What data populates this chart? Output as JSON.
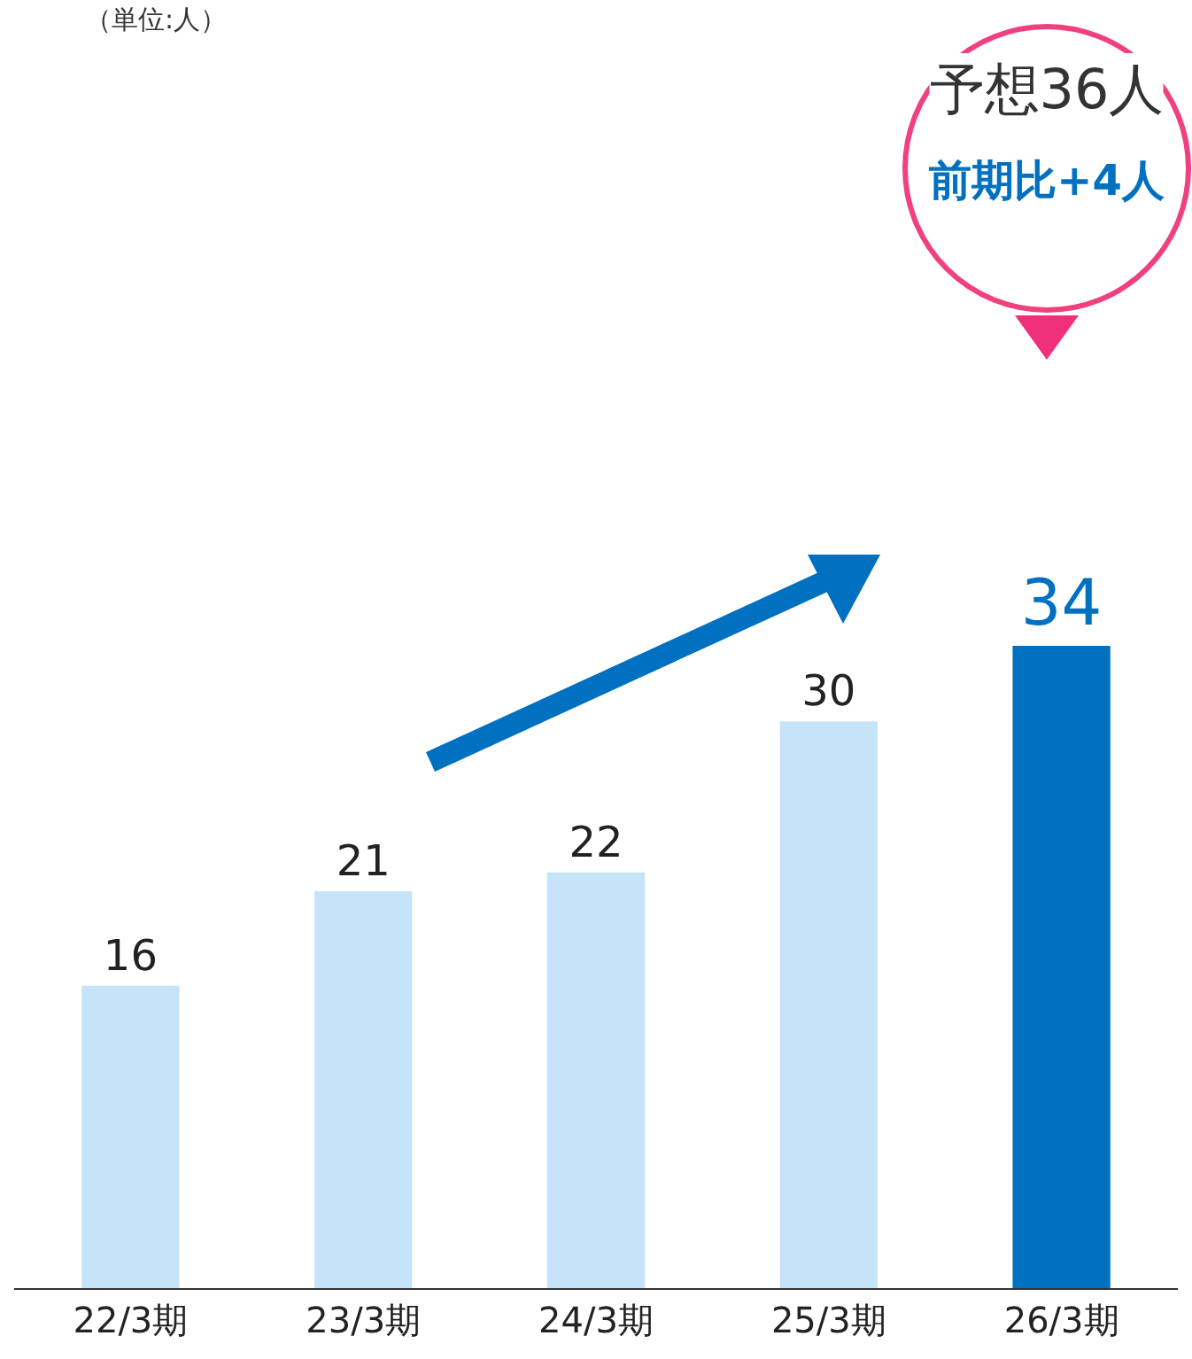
{
  "chart_data": {
    "type": "bar",
    "categories": [
      "22/3期",
      "23/3期",
      "24/3期",
      "25/3期",
      "26/3期"
    ],
    "values": [
      16,
      21,
      22,
      30,
      34
    ],
    "colors": [
      "#c5e4fa",
      "#c5e4fa",
      "#c5e4fa",
      "#c5e4fa",
      "#0070c0"
    ],
    "data_labels": true,
    "annotations": [
      "（単位:人）",
      "予想36人",
      "前期比+4人"
    ]
  }
}
